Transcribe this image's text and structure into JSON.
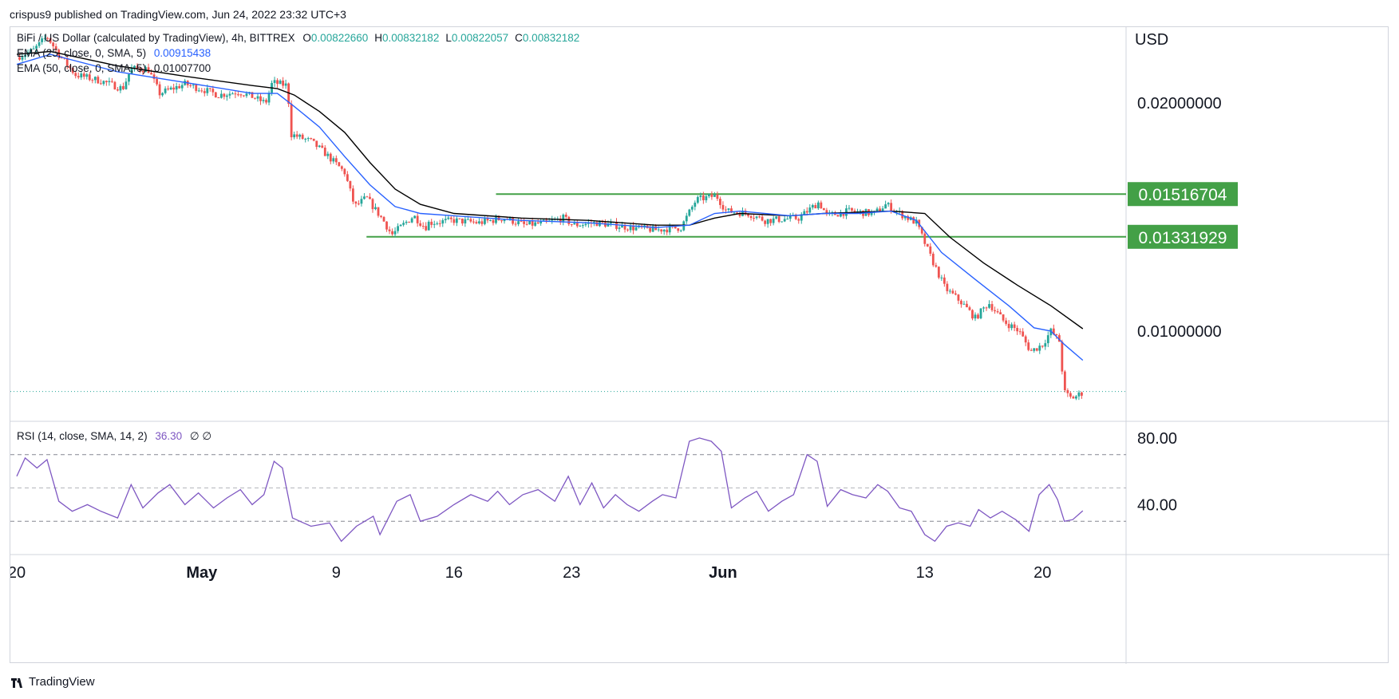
{
  "header": {
    "published": "crispus9 published on TradingView.com, Jun 24, 2022 23:32 UTC+3"
  },
  "legend": {
    "symbol": "BiFi / US Dollar (calculated by TradingView), 4h, BITTREX",
    "ohlc": [
      {
        "label": "O",
        "value": "0.00822660"
      },
      {
        "label": "H",
        "value": "0.00832182"
      },
      {
        "label": "L",
        "value": "0.00822057"
      },
      {
        "label": "C",
        "value": "0.00832182"
      }
    ],
    "ema25_label": "EMA (25, close, 0, SMA, 5)",
    "ema25_value": "0.00915438",
    "ema50_label": "EMA (50, close, 0, SMA, 5)",
    "ema50_value": "0.01007700",
    "rsi_label": "RSI (14, close, SMA, 14, 2)",
    "rsi_value": "36.30",
    "rsi_extra": "∅  ∅"
  },
  "footer": {
    "brand": "TradingView"
  },
  "colors": {
    "up": "#26a69a",
    "down": "#ef5350",
    "ema25": "#2962ff",
    "ema50": "#000000",
    "rsi": "#7e57c2",
    "level": "#43a047",
    "grid": "#e0e3eb"
  },
  "chart_data": {
    "type": "candlestick",
    "interval": "4h",
    "x_ticks": [
      {
        "label": "20",
        "day": 0
      },
      {
        "label": "May",
        "day": 11
      },
      {
        "label": "9",
        "day": 19
      },
      {
        "label": "16",
        "day": 26
      },
      {
        "label": "23",
        "day": 33
      },
      {
        "label": "Jun",
        "day": 42
      },
      {
        "label": "13",
        "day": 54
      },
      {
        "label": "20",
        "day": 61
      }
    ],
    "price_axis": {
      "currency": "USD",
      "ticks": [
        "0.02000000",
        "0.01000000"
      ],
      "tick_values": [
        0.02,
        0.01
      ],
      "range": [
        0.0076,
        0.0252
      ],
      "scale": "log"
    },
    "levels": [
      {
        "label": "0.01516704",
        "value": 0.01516704,
        "from_day": 28.5
      },
      {
        "label": "0.01331929",
        "value": 0.01331929,
        "from_day": 20.8
      }
    ],
    "last_price": 0.00832182,
    "close_path": [
      [
        0,
        0.023
      ],
      [
        1,
        0.0235
      ],
      [
        1.8,
        0.0245
      ],
      [
        2.5,
        0.0232
      ],
      [
        3.5,
        0.0218
      ],
      [
        5,
        0.0214
      ],
      [
        6.3,
        0.0209
      ],
      [
        6.8,
        0.0222
      ],
      [
        7.8,
        0.0222
      ],
      [
        8.5,
        0.0206
      ],
      [
        10,
        0.0212
      ],
      [
        11.2,
        0.0208
      ],
      [
        12,
        0.0205
      ],
      [
        13.2,
        0.0207
      ],
      [
        14,
        0.0204
      ],
      [
        14.8,
        0.02
      ],
      [
        15.2,
        0.0213
      ],
      [
        16.1,
        0.0211
      ],
      [
        16.3,
        0.0182
      ],
      [
        17.5,
        0.0178
      ],
      [
        18.3,
        0.0172
      ],
      [
        19.5,
        0.0162
      ],
      [
        20.1,
        0.0146
      ],
      [
        20.8,
        0.015
      ],
      [
        21.8,
        0.014
      ],
      [
        22.3,
        0.0134
      ],
      [
        23.6,
        0.0142
      ],
      [
        24.3,
        0.0137
      ],
      [
        24.5,
        0.0139
      ],
      [
        26,
        0.014
      ],
      [
        27.5,
        0.0139
      ],
      [
        29,
        0.0141
      ],
      [
        30.2,
        0.0138
      ],
      [
        31.5,
        0.0139
      ],
      [
        32.5,
        0.0141
      ],
      [
        33.1,
        0.0138
      ],
      [
        34.5,
        0.0139
      ],
      [
        35.5,
        0.0138
      ],
      [
        36.5,
        0.0137
      ],
      [
        38,
        0.0136
      ],
      [
        39.5,
        0.0137
      ],
      [
        40.4,
        0.0149
      ],
      [
        41.6,
        0.0151
      ],
      [
        42.2,
        0.0144
      ],
      [
        43.5,
        0.0143
      ],
      [
        44.5,
        0.014
      ],
      [
        46.5,
        0.0141
      ],
      [
        47.7,
        0.0148
      ],
      [
        48.2,
        0.0142
      ],
      [
        49.5,
        0.0144
      ],
      [
        51,
        0.0143
      ],
      [
        51.7,
        0.0147
      ],
      [
        52.5,
        0.0143
      ],
      [
        53.5,
        0.0139
      ],
      [
        54.3,
        0.0126
      ],
      [
        55.2,
        0.0114
      ],
      [
        56.2,
        0.0109
      ],
      [
        57,
        0.0104
      ],
      [
        57.8,
        0.0109
      ],
      [
        58.7,
        0.0103
      ],
      [
        59.6,
        0.01
      ],
      [
        60.3,
        0.0094
      ],
      [
        61,
        0.0096
      ],
      [
        61.5,
        0.01
      ],
      [
        62,
        0.0097
      ],
      [
        62.3,
        0.0083
      ],
      [
        62.7,
        0.00815
      ],
      [
        63,
        0.0082
      ],
      [
        63.4,
        0.0083
      ]
    ],
    "ema25_path": [
      [
        0,
        0.0225
      ],
      [
        2,
        0.0232
      ],
      [
        6,
        0.022
      ],
      [
        10,
        0.0213
      ],
      [
        14,
        0.0206
      ],
      [
        15.5,
        0.0206
      ],
      [
        16.5,
        0.0198
      ],
      [
        18,
        0.0186
      ],
      [
        19.5,
        0.017
      ],
      [
        21,
        0.0156
      ],
      [
        22.5,
        0.0146
      ],
      [
        24,
        0.0143
      ],
      [
        26,
        0.0142
      ],
      [
        30,
        0.014
      ],
      [
        34,
        0.0139
      ],
      [
        38,
        0.0137
      ],
      [
        40,
        0.0138
      ],
      [
        41.5,
        0.0143
      ],
      [
        43,
        0.0144
      ],
      [
        46,
        0.0142
      ],
      [
        48,
        0.0143
      ],
      [
        50,
        0.0143
      ],
      [
        52,
        0.0144
      ],
      [
        53.5,
        0.014
      ],
      [
        55,
        0.0127
      ],
      [
        57,
        0.0117
      ],
      [
        59,
        0.0108
      ],
      [
        60.5,
        0.0101
      ],
      [
        61.5,
        0.01
      ],
      [
        62.3,
        0.0096
      ],
      [
        63.4,
        0.00915
      ]
    ],
    "ema50_path": [
      [
        0,
        0.0232
      ],
      [
        2,
        0.0234
      ],
      [
        6,
        0.0224
      ],
      [
        10,
        0.0217
      ],
      [
        14,
        0.0211
      ],
      [
        15.5,
        0.0209
      ],
      [
        16.5,
        0.0205
      ],
      [
        18,
        0.0195
      ],
      [
        19.5,
        0.0183
      ],
      [
        21,
        0.0167
      ],
      [
        22.5,
        0.0154
      ],
      [
        24,
        0.0147
      ],
      [
        26,
        0.0143
      ],
      [
        30,
        0.0141
      ],
      [
        34,
        0.014
      ],
      [
        38,
        0.0138
      ],
      [
        40,
        0.0138
      ],
      [
        41.5,
        0.0141
      ],
      [
        43,
        0.0143
      ],
      [
        46,
        0.0142
      ],
      [
        48,
        0.0143
      ],
      [
        52,
        0.0144
      ],
      [
        54,
        0.0143
      ],
      [
        55.5,
        0.0133
      ],
      [
        57.5,
        0.0123
      ],
      [
        59.5,
        0.0115
      ],
      [
        61.5,
        0.0108
      ],
      [
        63.4,
        0.01007
      ]
    ],
    "rsi": {
      "ticks": [
        "80.00",
        "40.00"
      ],
      "tick_values": [
        80,
        40
      ],
      "range": [
        10,
        90
      ],
      "bands": [
        70,
        50,
        30
      ],
      "path": [
        [
          0,
          57
        ],
        [
          0.5,
          68
        ],
        [
          1.2,
          62
        ],
        [
          1.8,
          67
        ],
        [
          2.5,
          42
        ],
        [
          3.3,
          36
        ],
        [
          4.2,
          40
        ],
        [
          5,
          36
        ],
        [
          6,
          32
        ],
        [
          6.8,
          52
        ],
        [
          7.5,
          38
        ],
        [
          8.4,
          47
        ],
        [
          9.1,
          52
        ],
        [
          10,
          40
        ],
        [
          10.8,
          47
        ],
        [
          11.7,
          38
        ],
        [
          12.5,
          44
        ],
        [
          13.3,
          49
        ],
        [
          14,
          40
        ],
        [
          14.7,
          46
        ],
        [
          15.3,
          66
        ],
        [
          15.8,
          62
        ],
        [
          16.4,
          32
        ],
        [
          17.5,
          27
        ],
        [
          18.6,
          29
        ],
        [
          19.3,
          18
        ],
        [
          20.2,
          27
        ],
        [
          21.2,
          33
        ],
        [
          21.6,
          22
        ],
        [
          22.6,
          42
        ],
        [
          23.4,
          46
        ],
        [
          24,
          30
        ],
        [
          25,
          33
        ],
        [
          26,
          40
        ],
        [
          27,
          46
        ],
        [
          28,
          42
        ],
        [
          28.6,
          48
        ],
        [
          29.3,
          40
        ],
        [
          30.1,
          46
        ],
        [
          31,
          49
        ],
        [
          32,
          42
        ],
        [
          32.8,
          57
        ],
        [
          33.5,
          40
        ],
        [
          34.2,
          53
        ],
        [
          34.9,
          38
        ],
        [
          35.6,
          46
        ],
        [
          36.3,
          40
        ],
        [
          37,
          36
        ],
        [
          37.8,
          42
        ],
        [
          38.4,
          46
        ],
        [
          39.2,
          44
        ],
        [
          40,
          78
        ],
        [
          40.6,
          80
        ],
        [
          41.3,
          78
        ],
        [
          41.9,
          72
        ],
        [
          42.5,
          38
        ],
        [
          43.3,
          44
        ],
        [
          44,
          48
        ],
        [
          44.7,
          36
        ],
        [
          45.5,
          42
        ],
        [
          46.2,
          46
        ],
        [
          47,
          70
        ],
        [
          47.6,
          66
        ],
        [
          48.2,
          39
        ],
        [
          49,
          49
        ],
        [
          49.7,
          46
        ],
        [
          50.5,
          44
        ],
        [
          51.2,
          52
        ],
        [
          51.8,
          48
        ],
        [
          52.5,
          38
        ],
        [
          53.2,
          36
        ],
        [
          54,
          22
        ],
        [
          54.6,
          18
        ],
        [
          55.3,
          27
        ],
        [
          56,
          29
        ],
        [
          56.7,
          27
        ],
        [
          57.2,
          37
        ],
        [
          57.9,
          32
        ],
        [
          58.6,
          36
        ],
        [
          59.4,
          31
        ],
        [
          60.2,
          24
        ],
        [
          60.8,
          46
        ],
        [
          61.4,
          52
        ],
        [
          61.9,
          43
        ],
        [
          62.3,
          30
        ],
        [
          62.8,
          31
        ],
        [
          63.4,
          36.3
        ]
      ]
    }
  }
}
